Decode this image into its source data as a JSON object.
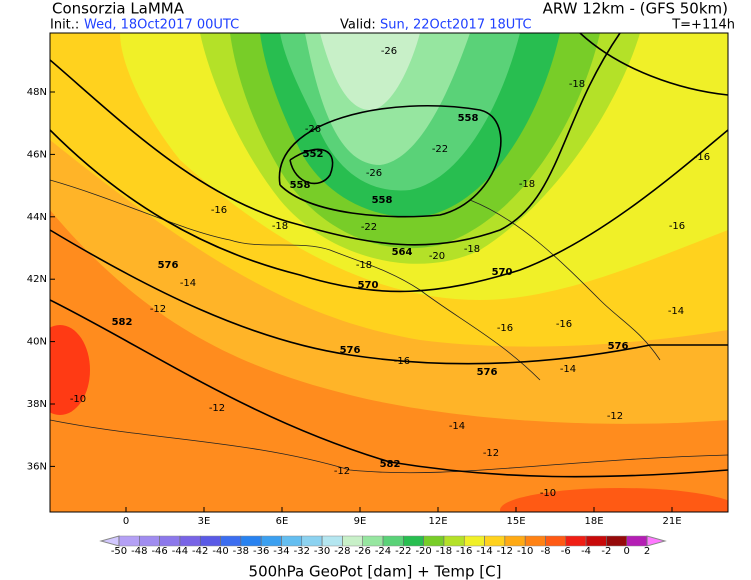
{
  "header": {
    "org": "Consorzia LaMMA",
    "init_label": "Init.:",
    "init": "Wed, 18Oct2017 00UTC",
    "model": "ARW 12km - (GFS 50km)",
    "valid_label": "Valid:",
    "valid": "Sun, 22Oct2017 18UTC",
    "step": "T=+114h"
  },
  "map": {
    "lat_ticks": [
      {
        "value": 48,
        "label": "48N"
      },
      {
        "value": 46,
        "label": "46N"
      },
      {
        "value": 44,
        "label": "44N"
      },
      {
        "value": 42,
        "label": "42N"
      },
      {
        "value": 40,
        "label": "40N"
      },
      {
        "value": 38,
        "label": "38N"
      },
      {
        "value": 36,
        "label": "36N"
      }
    ],
    "lon_ticks": [
      0,
      {
        "value": 3,
        "label": "3E"
      },
      {
        "value": 6,
        "label": "6E"
      },
      {
        "value": 9,
        "label": "9E"
      },
      {
        "value": 12,
        "label": "12E"
      },
      {
        "value": 15,
        "label": "15E"
      },
      {
        "value": 18,
        "label": "18E"
      },
      {
        "value": 21,
        "label": "21E"
      }
    ],
    "geopot_labels": [
      552,
      558,
      558,
      558,
      564,
      570,
      570,
      576,
      582,
      576,
      576,
      576,
      582
    ],
    "temp_labels": [
      -26,
      -26,
      -26,
      -22,
      -22,
      -18,
      -18,
      -18,
      -18,
      -18,
      -20,
      -16,
      -16,
      -16,
      -16,
      -16,
      -16,
      -14,
      -14,
      -14,
      -14,
      -12,
      -12,
      -12,
      -12,
      -12,
      -10,
      -10
    ]
  },
  "colorbar": {
    "ticks": [
      -50,
      -48,
      -46,
      -44,
      -42,
      -40,
      -38,
      -36,
      -34,
      -32,
      -30,
      -28,
      -26,
      -24,
      -22,
      -20,
      -18,
      -16,
      -14,
      -12,
      -10,
      -8,
      -6,
      -4,
      -2,
      0,
      2
    ],
    "colors": [
      "#d2c8ff",
      "#b4a0f5",
      "#a08cf0",
      "#8c78eb",
      "#7864e6",
      "#5a5ae6",
      "#3c6ef0",
      "#2882f0",
      "#3ca0f0",
      "#64bef0",
      "#8cd2f0",
      "#b4e6f0",
      "#c8f0c8",
      "#96e6a0",
      "#5ad278",
      "#28be50",
      "#78cd28",
      "#b4e128",
      "#f0f028",
      "#ffd21e",
      "#ffaa14",
      "#ff8214",
      "#ff5a14",
      "#f01e14",
      "#c80a0a",
      "#960a0a",
      "#b41eb4",
      "#ff78ff"
    ],
    "title": "500hPa GeoPot [dam] + Temp [C]"
  }
}
